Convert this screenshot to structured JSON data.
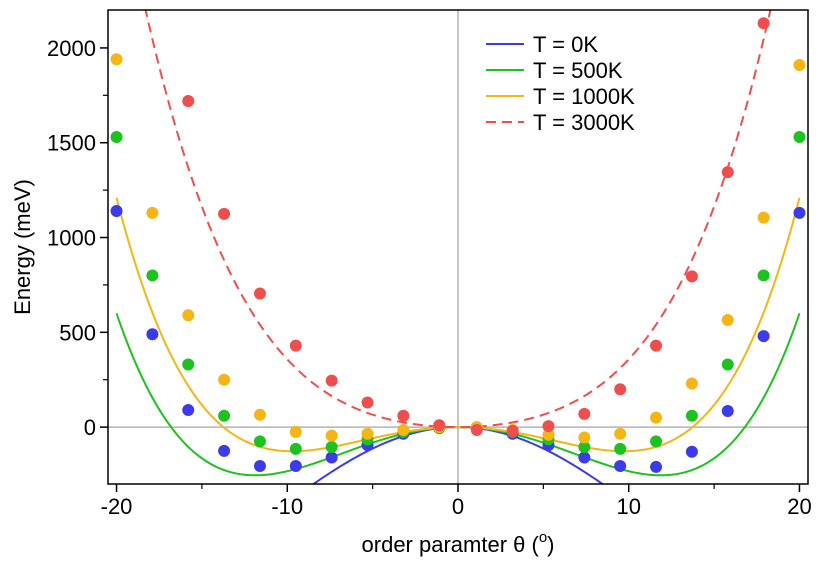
{
  "chart_data": {
    "type": "line",
    "xlabel_main": "order paramter θ (",
    "xlabel_unit": "o",
    "xlabel_close": ")",
    "ylabel": "Energy (meV)",
    "xlim": [
      -20.5,
      20.5
    ],
    "ylim": [
      -300,
      2200
    ],
    "xticks": [
      -20,
      -10,
      0,
      10,
      20
    ],
    "xticklabels": [
      "-20",
      "-10",
      "0",
      "10",
      "20"
    ],
    "xminor": [
      -15,
      -5,
      5,
      15
    ],
    "yticks": [
      0,
      500,
      1000,
      1500,
      2000
    ],
    "yticklabels": [
      "0",
      "500",
      "1000",
      "1500",
      "2000"
    ],
    "yminor": [
      250,
      750,
      1250,
      1750
    ],
    "reference_lines": {
      "x": 0,
      "y": 0,
      "color": "#b3b3b3"
    },
    "legend_position": "top-right",
    "series": [
      {
        "name": "T = 0K",
        "color": "#3b3be8",
        "dash": false,
        "fit": {
          "a2": -4.7,
          "a4": 0.00717
        },
        "points": [
          [
            -20.0,
            1140
          ],
          [
            -17.9,
            490
          ],
          [
            -15.8,
            90
          ],
          [
            -13.7,
            -125
          ],
          [
            -11.6,
            -205
          ],
          [
            -9.5,
            -205
          ],
          [
            -7.4,
            -160
          ],
          [
            -5.3,
            -95
          ],
          [
            -3.2,
            -35
          ],
          [
            -1.1,
            -5
          ],
          [
            1.1,
            -5
          ],
          [
            3.2,
            -35
          ],
          [
            5.3,
            -95
          ],
          [
            7.4,
            -160
          ],
          [
            9.5,
            -205
          ],
          [
            11.6,
            -210
          ],
          [
            13.7,
            -130
          ],
          [
            15.8,
            85
          ],
          [
            17.9,
            480
          ],
          [
            20.0,
            1130
          ]
        ]
      },
      {
        "name": "T = 500K",
        "color": "#1ec21e",
        "dash": false,
        "fit": {
          "a2": -3.6,
          "a4": 0.01275
        },
        "points": [
          [
            -20.0,
            1530
          ],
          [
            -17.9,
            800
          ],
          [
            -15.8,
            330
          ],
          [
            -13.7,
            60
          ],
          [
            -11.6,
            -75
          ],
          [
            -9.5,
            -115
          ],
          [
            -7.4,
            -105
          ],
          [
            -5.3,
            -65
          ],
          [
            -3.2,
            -25
          ],
          [
            -1.1,
            -5
          ],
          [
            1.1,
            -5
          ],
          [
            3.2,
            -25
          ],
          [
            5.3,
            -65
          ],
          [
            7.4,
            -105
          ],
          [
            9.5,
            -115
          ],
          [
            11.6,
            -75
          ],
          [
            13.7,
            60
          ],
          [
            15.8,
            330
          ],
          [
            17.9,
            800
          ],
          [
            20.0,
            1530
          ]
        ]
      },
      {
        "name": "T = 1000K",
        "color": "#f5b514",
        "dash": false,
        "fit": {
          "a2": -2.7,
          "a4": 0.01431
        },
        "points": [
          [
            -20.0,
            1940
          ],
          [
            -17.9,
            1130
          ],
          [
            -15.8,
            590
          ],
          [
            -13.7,
            250
          ],
          [
            -11.6,
            65
          ],
          [
            -9.5,
            -25
          ],
          [
            -7.4,
            -45
          ],
          [
            -5.3,
            -35
          ],
          [
            -3.2,
            -15
          ],
          [
            -1.1,
            0
          ],
          [
            1.1,
            0
          ],
          [
            3.2,
            -15
          ],
          [
            5.3,
            -40
          ],
          [
            7.4,
            -55
          ],
          [
            9.5,
            -35
          ],
          [
            11.6,
            50
          ],
          [
            13.7,
            230
          ],
          [
            15.8,
            565
          ],
          [
            17.9,
            1105
          ],
          [
            20.0,
            1910
          ]
        ]
      },
      {
        "name": "T = 3000K",
        "color": "#ef4e4e",
        "dash": true,
        "fit": {
          "a2": 2.3,
          "a4": 0.01275
        },
        "points": [
          [
            -15.8,
            1720
          ],
          [
            -13.7,
            1125
          ],
          [
            -11.6,
            705
          ],
          [
            -9.5,
            430
          ],
          [
            -7.4,
            245
          ],
          [
            -5.3,
            130
          ],
          [
            -3.2,
            60
          ],
          [
            -1.1,
            10
          ],
          [
            1.1,
            -15
          ],
          [
            3.2,
            -20
          ],
          [
            5.3,
            5
          ],
          [
            7.4,
            70
          ],
          [
            9.5,
            200
          ],
          [
            11.6,
            430
          ],
          [
            13.7,
            795
          ],
          [
            15.8,
            1345
          ],
          [
            17.9,
            2130
          ]
        ]
      }
    ]
  }
}
